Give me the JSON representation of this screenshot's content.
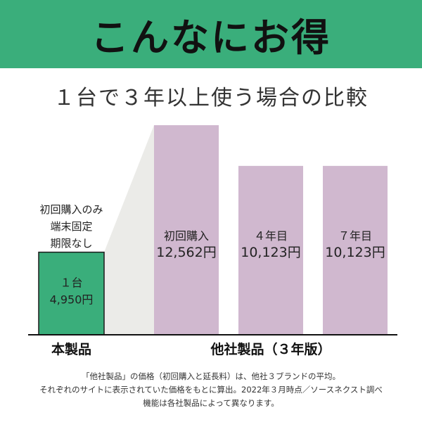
{
  "header": {
    "title": "こんなにお得"
  },
  "subtitle": "１台で３年以上使う場合の比較",
  "chart_data": {
    "type": "bar",
    "currency_unit": "円",
    "ylim": [
      0,
      12562
    ],
    "groups": [
      {
        "label": "本製品",
        "bars": [
          0
        ]
      },
      {
        "label": "他社製品（３年版）",
        "bars": [
          1,
          2,
          3
        ]
      }
    ],
    "bars": [
      {
        "label": "１台",
        "value": 4950,
        "value_text": "4,950円",
        "color": "#3aae7b",
        "note_lines": [
          "初回購入のみ",
          "端末固定",
          "期限なし"
        ]
      },
      {
        "label": "初回購入",
        "value": 12562,
        "value_text": "12,562円",
        "color": "#d0b8cf"
      },
      {
        "label": "４年目",
        "value": 10123,
        "value_text": "10,123円",
        "color": "#d0b8cf"
      },
      {
        "label": "７年目",
        "value": 10123,
        "value_text": "10,123円",
        "color": "#d0b8cf"
      }
    ],
    "colors": {
      "highlight": "#3aae7b",
      "competitor": "#d0b8cf",
      "wedge": "#ebebe8",
      "baseline": "#111111"
    }
  },
  "footnotes": [
    "「他社製品」の価格（初回購入と延長料）は、他社３ブランドの平均。",
    "それぞれのサイトに表示されていた価格をもとに算出。2022年３月時点／ソースネクスト調べ",
    "機能は各社製品によって異なります。"
  ]
}
